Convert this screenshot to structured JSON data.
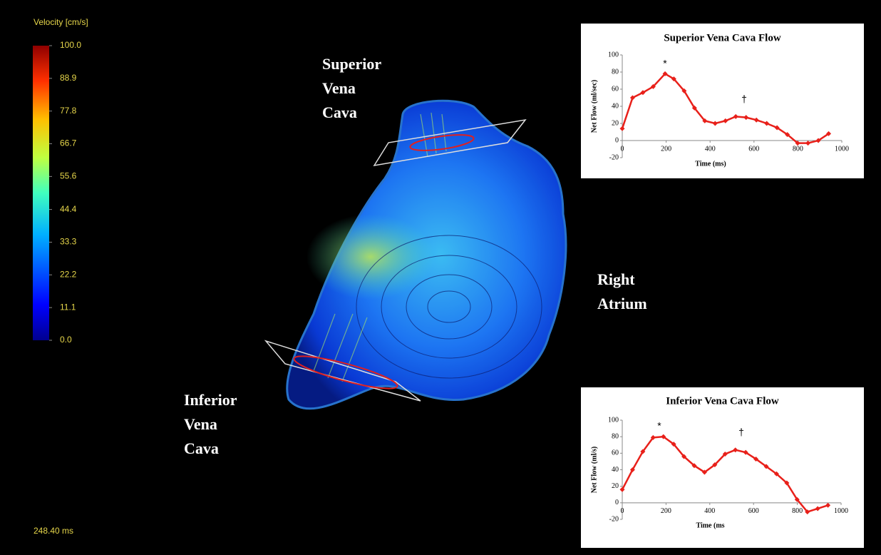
{
  "colorbar": {
    "title": "Velocity [cm/s]",
    "lim": [
      0,
      100
    ],
    "ticks": [
      {
        "value": 100,
        "label": "100.0"
      },
      88.9,
      77.8,
      66.7,
      55.6,
      44.4,
      33.3,
      22.2,
      11.1,
      {
        "value": 0,
        "label": "0.0"
      }
    ]
  },
  "timestamp": "248.40 ms",
  "labels": {
    "superior": [
      "Superior",
      "Vena",
      "Cava"
    ],
    "right_atrium": [
      "Right",
      "Atrium"
    ],
    "inferior": [
      "Inferior",
      "Vena",
      "Cava"
    ]
  },
  "chart_data": [
    {
      "type": "line",
      "title": "Superior  Vena Cava Flow",
      "x_label": "Time (ms)",
      "y_label": "Net Flow  (ml/sec)",
      "annotations": [
        "*",
        "†"
      ],
      "x": [
        0,
        47,
        94,
        141,
        195,
        235,
        282,
        329,
        376,
        423,
        470,
        517,
        564,
        611,
        658,
        705,
        752,
        799,
        846,
        893,
        940
      ],
      "series": [
        {
          "name": "Superior Vena Cava Flow",
          "color": "#e8201a",
          "values": [
            14,
            50,
            56,
            63,
            78,
            72,
            58,
            38,
            23,
            20,
            23,
            28,
            27,
            24,
            20,
            15,
            7,
            -3,
            -3,
            0,
            8
          ]
        }
      ],
      "xlim": [
        0,
        1000
      ],
      "xticks": [
        0,
        200,
        400,
        600,
        800,
        1000
      ],
      "ylim": [
        -20,
        100
      ],
      "yticks": [
        -20,
        0,
        20,
        40,
        60,
        80,
        100
      ]
    },
    {
      "type": "line",
      "title": "Inferior  Vena Cava  Flow",
      "x_label": "Time (ms",
      "y_label": "Net Flow  (ml/s)",
      "annotations": [
        "*",
        "†"
      ],
      "x": [
        0,
        47,
        94,
        141,
        188,
        235,
        282,
        329,
        376,
        423,
        470,
        517,
        564,
        611,
        658,
        705,
        752,
        799,
        846,
        893,
        940
      ],
      "series": [
        {
          "name": "Inferior Vena Cava Flow",
          "color": "#e8201a",
          "values": [
            16,
            40,
            62,
            79,
            80,
            71,
            56,
            45,
            37,
            46,
            59,
            64,
            61,
            53,
            44,
            35,
            24,
            4,
            -11,
            -7,
            -3
          ]
        }
      ],
      "xlim": [
        0,
        1000
      ],
      "xticks": [
        0,
        200,
        400,
        600,
        800,
        1000
      ],
      "ylim": [
        -20,
        100
      ],
      "yticks": [
        -20,
        0,
        20,
        40,
        60,
        80,
        100
      ]
    }
  ]
}
